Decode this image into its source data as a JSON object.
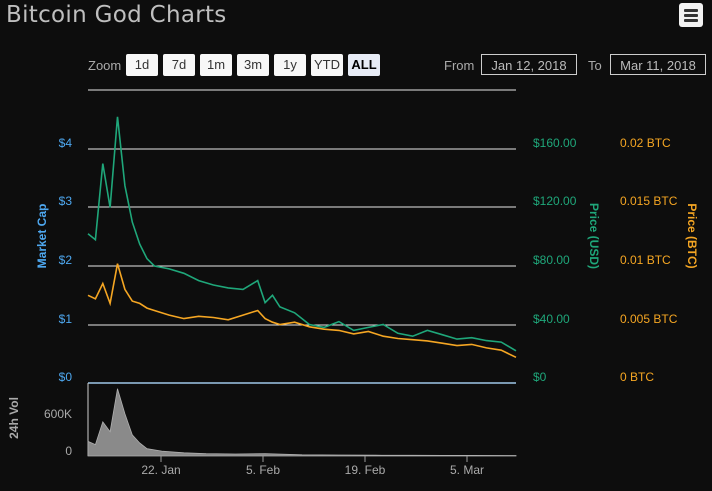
{
  "title": "Bitcoin God Charts",
  "menu_icon": "hamburger-menu-icon",
  "rangeSelector": {
    "zoom_label": "Zoom",
    "buttons": [
      "1d",
      "7d",
      "1m",
      "3m",
      "1y",
      "YTD",
      "ALL"
    ],
    "selected": "ALL",
    "from_label": "From",
    "from_value": "Jan 12, 2018",
    "to_label": "To",
    "to_value": "Mar 11, 2018"
  },
  "colors": {
    "market_cap": "#4ea8f0",
    "price_usd": "#1fa77a",
    "price_btc": "#f5a623",
    "volume": "#8a8a8a"
  },
  "chart_data": [
    {
      "type": "line",
      "x_ticks": [
        "22. Jan",
        "5. Feb",
        "19. Feb",
        "5. Mar"
      ],
      "axes": {
        "left": {
          "title": "Market Cap",
          "ticks": [
            "$0",
            "$1",
            "$2",
            "$3",
            "$4"
          ],
          "range": [
            0,
            4
          ]
        },
        "right1": {
          "title": "Price (USD)",
          "ticks": [
            "$0",
            "$40.00",
            "$80.00",
            "$120.00",
            "$160.00"
          ],
          "range": [
            0,
            160
          ]
        },
        "right2": {
          "title": "Price (BTC)",
          "ticks": [
            "0 BTC",
            "0.005 BTC",
            "0.01 BTC",
            "0.015 BTC",
            "0.02 BTC"
          ],
          "range": [
            0,
            0.02
          ]
        }
      },
      "x_range": [
        "2018-01-12",
        "2018-03-11"
      ],
      "series": [
        {
          "name": "Price (USD)",
          "axis": "right1",
          "x": [
            "2018-01-12",
            "2018-01-13",
            "2018-01-14",
            "2018-01-15",
            "2018-01-16",
            "2018-01-17",
            "2018-01-18",
            "2018-01-19",
            "2018-01-20",
            "2018-01-21",
            "2018-01-23",
            "2018-01-25",
            "2018-01-27",
            "2018-01-29",
            "2018-01-31",
            "2018-02-02",
            "2018-02-04",
            "2018-02-05",
            "2018-02-06",
            "2018-02-07",
            "2018-02-09",
            "2018-02-11",
            "2018-02-13",
            "2018-02-15",
            "2018-02-17",
            "2018-02-19",
            "2018-02-21",
            "2018-02-23",
            "2018-02-25",
            "2018-02-27",
            "2018-03-01",
            "2018-03-03",
            "2018-03-05",
            "2018-03-07",
            "2018-03-09",
            "2018-03-11"
          ],
          "values": [
            102,
            98,
            150,
            120,
            182,
            135,
            110,
            95,
            85,
            80,
            78,
            75,
            70,
            67,
            65,
            64,
            70,
            55,
            60,
            52,
            48,
            40,
            38,
            42,
            36,
            38,
            40,
            34,
            32,
            36,
            33,
            30,
            31,
            29,
            28,
            22
          ]
        },
        {
          "name": "Price (BTC)",
          "axis": "right2",
          "x": [
            "2018-01-12",
            "2018-01-13",
            "2018-01-14",
            "2018-01-15",
            "2018-01-16",
            "2018-01-17",
            "2018-01-18",
            "2018-01-19",
            "2018-01-20",
            "2018-01-21",
            "2018-01-23",
            "2018-01-25",
            "2018-01-27",
            "2018-01-29",
            "2018-01-31",
            "2018-02-02",
            "2018-02-04",
            "2018-02-05",
            "2018-02-06",
            "2018-02-07",
            "2018-02-09",
            "2018-02-11",
            "2018-02-13",
            "2018-02-15",
            "2018-02-17",
            "2018-02-19",
            "2018-02-21",
            "2018-02-23",
            "2018-02-25",
            "2018-02-27",
            "2018-03-01",
            "2018-03-03",
            "2018-03-05",
            "2018-03-07",
            "2018-03-09",
            "2018-03-11"
          ],
          "values": [
            0.0075,
            0.0072,
            0.0085,
            0.0068,
            0.0102,
            0.008,
            0.007,
            0.0068,
            0.0064,
            0.0062,
            0.0058,
            0.0055,
            0.0057,
            0.0056,
            0.0054,
            0.0058,
            0.0062,
            0.0055,
            0.0052,
            0.005,
            0.0052,
            0.0048,
            0.0046,
            0.0045,
            0.0042,
            0.0044,
            0.004,
            0.0038,
            0.0037,
            0.0036,
            0.0034,
            0.0032,
            0.0033,
            0.003,
            0.0028,
            0.0022
          ]
        }
      ]
    },
    {
      "type": "area",
      "axis_title": "24h Vol",
      "y_ticks": [
        "0",
        "600K"
      ],
      "ylim": [
        0,
        900000
      ],
      "series": [
        {
          "name": "24h Vol",
          "x": [
            "2018-01-12",
            "2018-01-13",
            "2018-01-14",
            "2018-01-15",
            "2018-01-16",
            "2018-01-17",
            "2018-01-18",
            "2018-01-19",
            "2018-01-20",
            "2018-01-22",
            "2018-01-25",
            "2018-01-28",
            "2018-02-01",
            "2018-02-05",
            "2018-02-10",
            "2018-02-15",
            "2018-02-20",
            "2018-02-25",
            "2018-03-01",
            "2018-03-05",
            "2018-03-11"
          ],
          "values": [
            180000,
            140000,
            420000,
            300000,
            830000,
            520000,
            260000,
            160000,
            90000,
            60000,
            40000,
            30000,
            25000,
            30000,
            15000,
            12000,
            10000,
            9000,
            8000,
            7000,
            6000
          ]
        }
      ]
    }
  ]
}
